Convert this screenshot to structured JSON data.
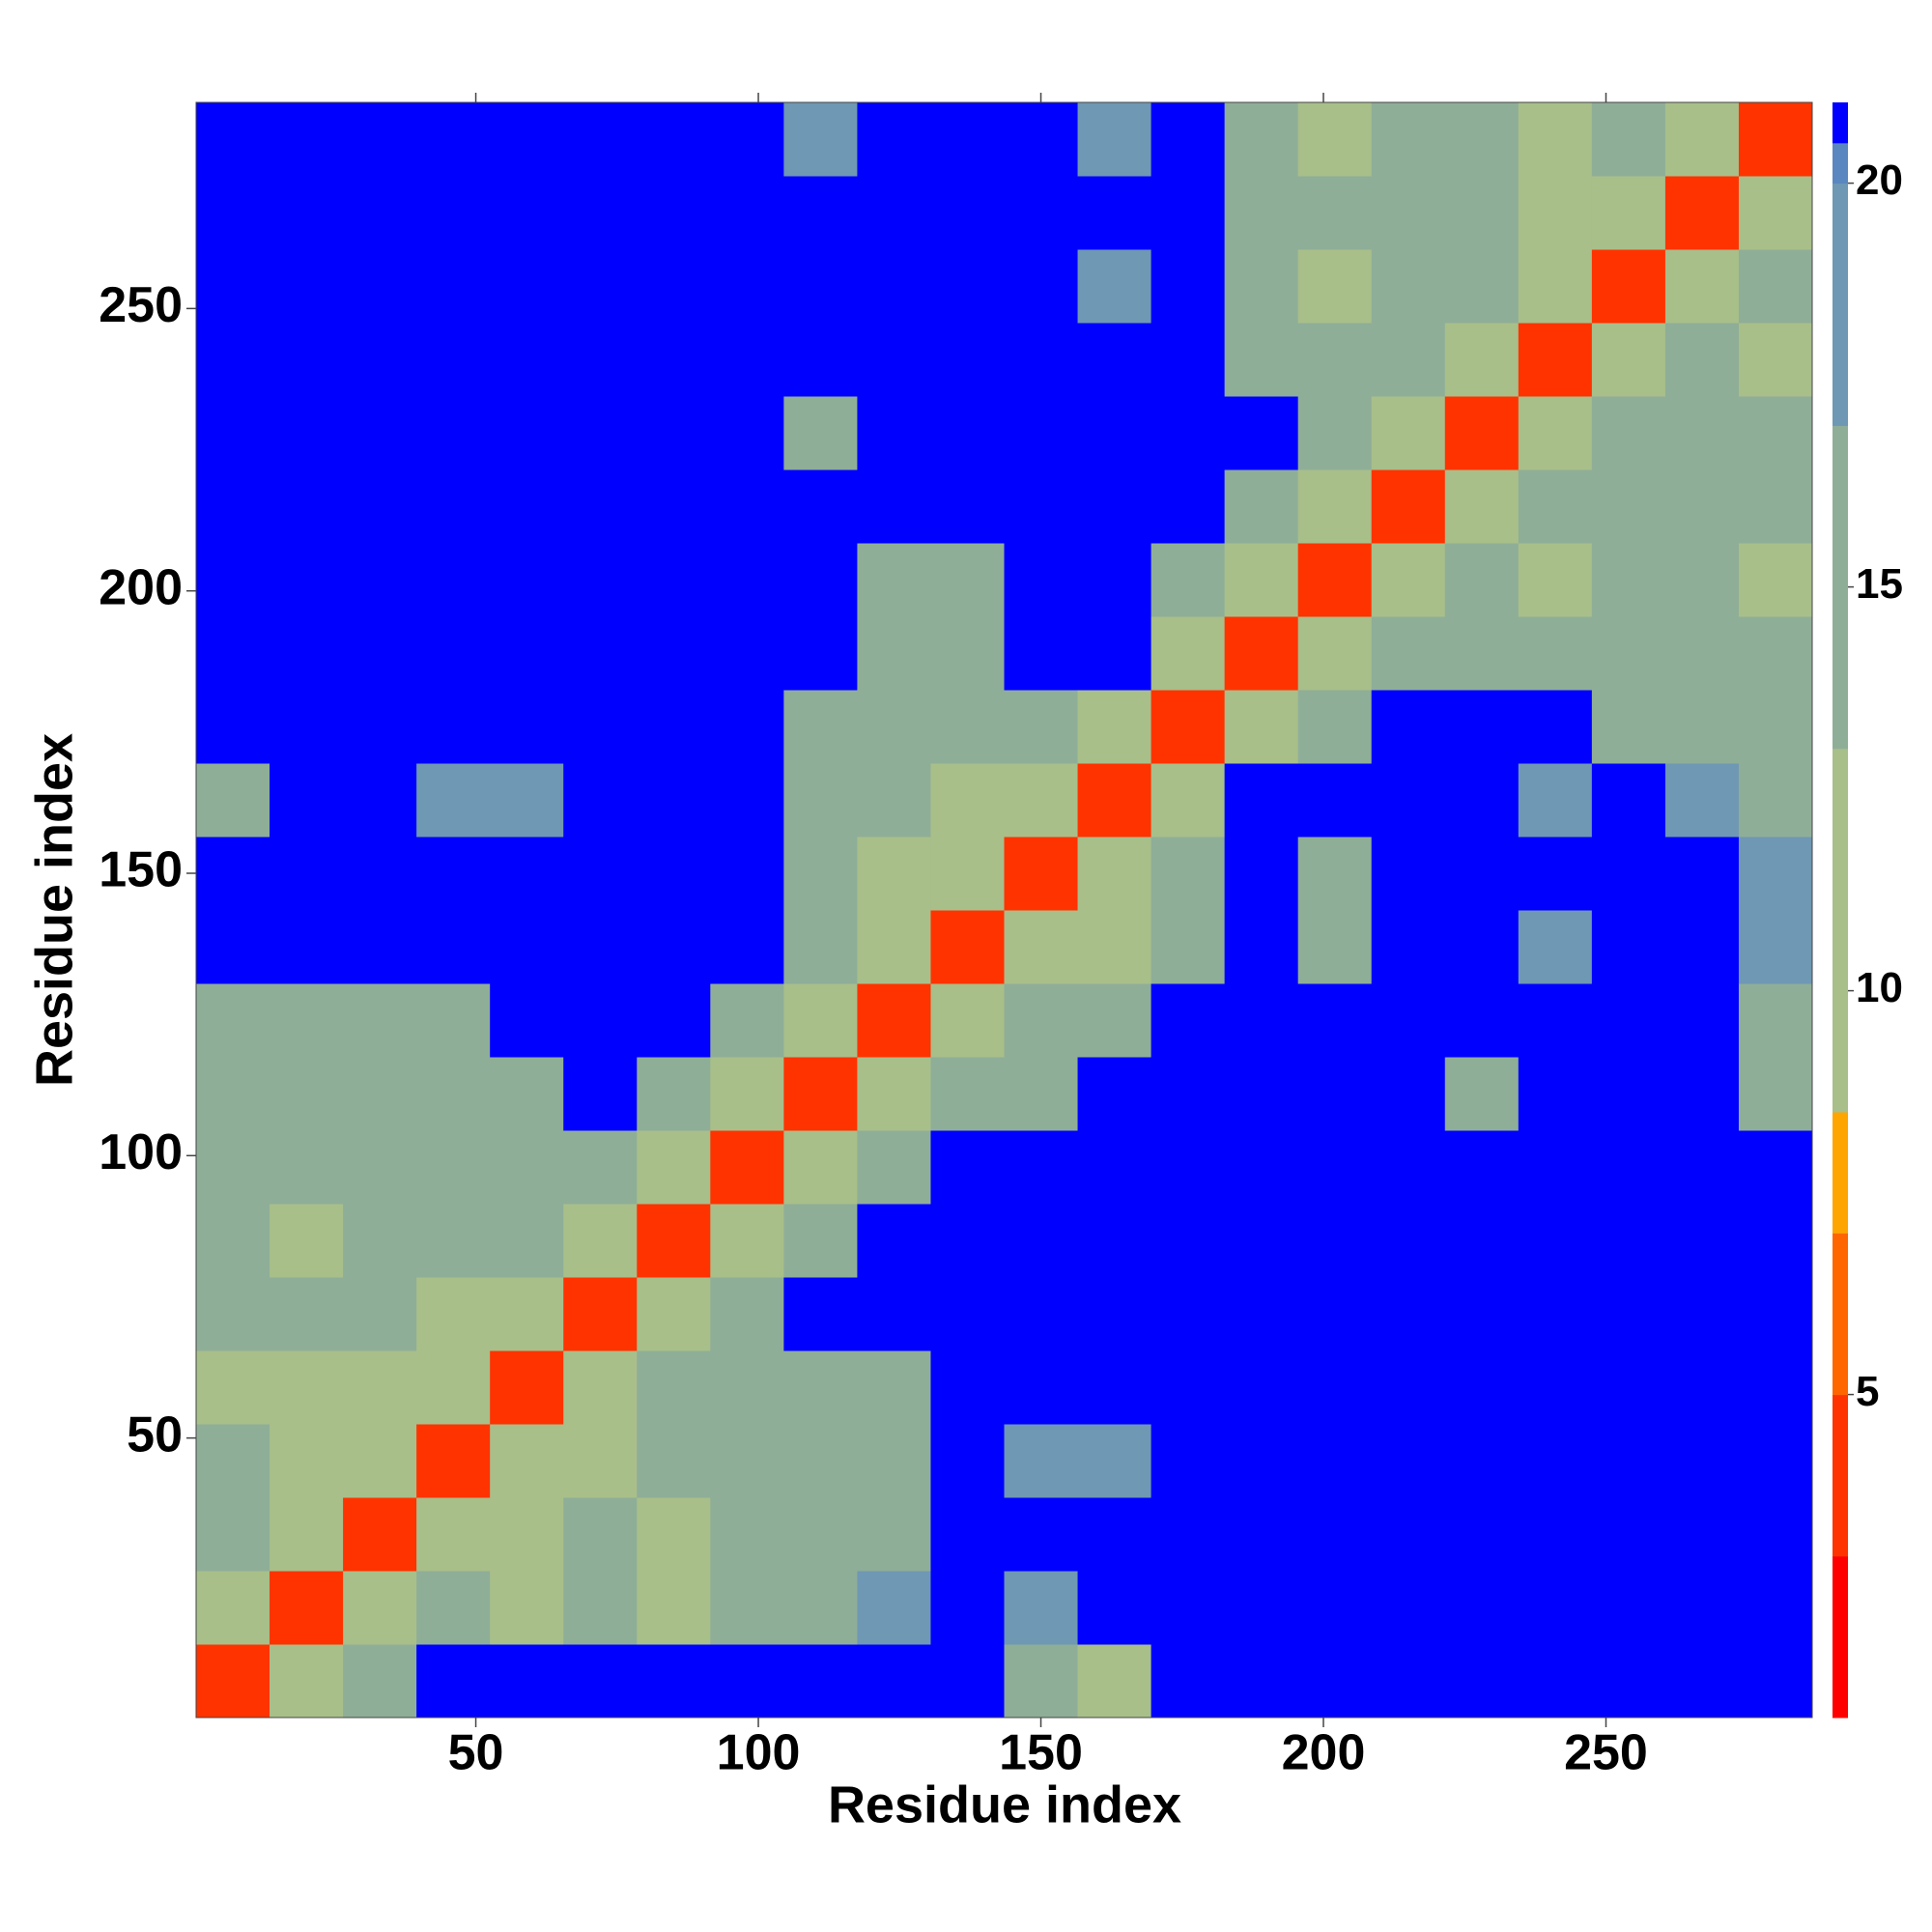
{
  "chart_data": {
    "type": "heatmap",
    "xlabel": "Residue index",
    "ylabel": "Residue index",
    "x": [
      7,
      20,
      33,
      46,
      59,
      72,
      85,
      98,
      111,
      124,
      137,
      150,
      163,
      176,
      189,
      202,
      215,
      228,
      241,
      254,
      267,
      280
    ],
    "y": [
      7,
      20,
      33,
      46,
      59,
      72,
      85,
      98,
      111,
      124,
      137,
      150,
      163,
      176,
      189,
      202,
      215,
      228,
      241,
      254,
      267,
      280
    ],
    "z": [
      [
        4,
        11,
        15,
        21,
        21,
        21,
        21,
        21,
        21,
        21,
        21,
        14,
        12,
        21,
        21,
        21,
        21,
        21,
        21,
        21,
        21,
        21
      ],
      [
        11,
        4,
        11,
        13,
        9,
        13,
        9,
        14,
        15,
        17,
        21,
        17,
        21,
        21,
        21,
        21,
        21,
        21,
        21,
        21,
        21,
        21
      ],
      [
        13,
        11,
        4,
        11,
        12,
        13,
        12,
        15,
        15,
        16,
        21,
        21,
        21,
        21,
        21,
        21,
        21,
        21,
        21,
        21,
        21,
        21
      ],
      [
        13,
        12,
        11,
        4,
        10,
        12,
        14,
        16,
        13,
        14,
        21,
        17,
        17,
        21,
        21,
        21,
        21,
        21,
        21,
        21,
        21,
        21
      ],
      [
        12,
        9,
        12,
        10,
        4,
        12,
        14,
        14,
        13,
        14,
        21,
        21,
        21,
        21,
        21,
        21,
        21,
        21,
        21,
        21,
        21,
        21
      ],
      [
        13,
        13,
        13,
        12,
        12,
        4,
        11,
        14,
        21,
        21,
        21,
        21,
        21,
        21,
        21,
        21,
        21,
        21,
        21,
        21,
        21,
        21
      ],
      [
        14,
        9,
        13,
        13,
        13,
        11,
        4,
        11,
        14,
        21,
        21,
        21,
        21,
        21,
        21,
        21,
        21,
        21,
        21,
        21,
        21,
        21
      ],
      [
        16,
        14,
        15,
        15,
        16,
        14,
        11,
        4,
        11,
        13,
        21,
        21,
        21,
        21,
        21,
        21,
        21,
        21,
        21,
        21,
        21,
        21
      ],
      [
        14,
        14,
        15,
        13,
        15,
        21,
        16,
        11,
        4,
        11,
        14,
        15,
        21,
        21,
        21,
        21,
        21,
        13,
        21,
        21,
        21,
        16
      ],
      [
        15,
        15,
        15,
        14,
        21,
        21,
        21,
        13,
        11,
        4,
        11,
        13,
        14,
        21,
        21,
        21,
        21,
        21,
        21,
        21,
        21,
        15
      ],
      [
        21,
        21,
        21,
        21,
        21,
        21,
        21,
        21,
        13,
        11,
        4,
        9,
        12,
        14,
        21,
        13,
        21,
        21,
        17,
        21,
        21,
        18
      ],
      [
        21,
        21,
        21,
        21,
        21,
        21,
        21,
        21,
        13,
        12,
        9,
        4,
        9,
        13,
        21,
        16,
        21,
        21,
        21,
        21,
        21,
        17
      ],
      [
        14,
        21,
        21,
        17,
        17,
        21,
        21,
        21,
        14,
        13,
        12,
        9,
        4,
        12,
        21,
        21,
        21,
        21,
        18,
        21,
        18,
        16
      ],
      [
        21,
        21,
        21,
        21,
        21,
        21,
        21,
        21,
        16,
        14,
        14,
        13,
        12,
        4,
        12,
        13,
        21,
        21,
        21,
        14,
        14,
        13
      ],
      [
        21,
        21,
        21,
        21,
        21,
        21,
        21,
        21,
        21,
        15,
        16,
        21,
        21,
        12,
        4,
        9,
        14,
        15,
        15,
        14,
        13,
        14
      ],
      [
        21,
        21,
        21,
        21,
        21,
        21,
        21,
        21,
        21,
        15,
        15,
        21,
        21,
        13,
        9,
        4,
        11,
        15,
        10,
        14,
        13,
        12
      ],
      [
        21,
        21,
        21,
        21,
        21,
        21,
        21,
        21,
        21,
        21,
        21,
        21,
        21,
        21,
        13,
        11,
        4,
        11,
        13,
        15,
        14,
        15
      ],
      [
        21,
        21,
        21,
        21,
        21,
        21,
        21,
        21,
        14,
        21,
        21,
        21,
        21,
        21,
        21,
        15,
        11,
        4,
        10,
        13,
        15,
        16
      ],
      [
        21,
        21,
        21,
        21,
        21,
        21,
        21,
        21,
        21,
        21,
        21,
        21,
        21,
        21,
        14,
        13,
        13,
        10,
        4,
        11,
        14,
        9
      ],
      [
        21,
        21,
        21,
        21,
        21,
        21,
        21,
        21,
        21,
        21,
        21,
        21,
        18,
        21,
        13,
        11,
        14,
        13,
        11,
        4,
        11,
        13
      ],
      [
        21,
        21,
        21,
        21,
        21,
        21,
        21,
        21,
        21,
        21,
        21,
        21,
        21,
        21,
        15,
        14,
        13,
        14,
        10,
        11,
        4,
        11
      ],
      [
        21,
        21,
        21,
        21,
        21,
        21,
        21,
        21,
        18,
        21,
        21,
        21,
        17,
        21,
        14,
        12,
        14,
        14,
        9,
        13,
        11,
        4
      ]
    ],
    "xlim": [
      0.5,
      286.5
    ],
    "ylim": [
      0.5,
      286.5
    ],
    "xticks": [
      50,
      100,
      150,
      200,
      250
    ],
    "yticks": [
      50,
      100,
      150,
      200,
      250
    ],
    "clim": [
      1,
      21
    ],
    "cticks": [
      5,
      10,
      15,
      20
    ],
    "colorscale": [
      [
        1,
        "#ff0000"
      ],
      [
        3,
        "#ff3300"
      ],
      [
        5,
        "#ff6600"
      ],
      [
        7,
        "#ffa500"
      ],
      [
        8.5,
        "#a8bf8a"
      ],
      [
        13,
        "#8fae98"
      ],
      [
        17,
        "#6e98b3"
      ],
      [
        20,
        "#5a87c0"
      ],
      [
        20.5,
        "#0000ff"
      ]
    ]
  }
}
